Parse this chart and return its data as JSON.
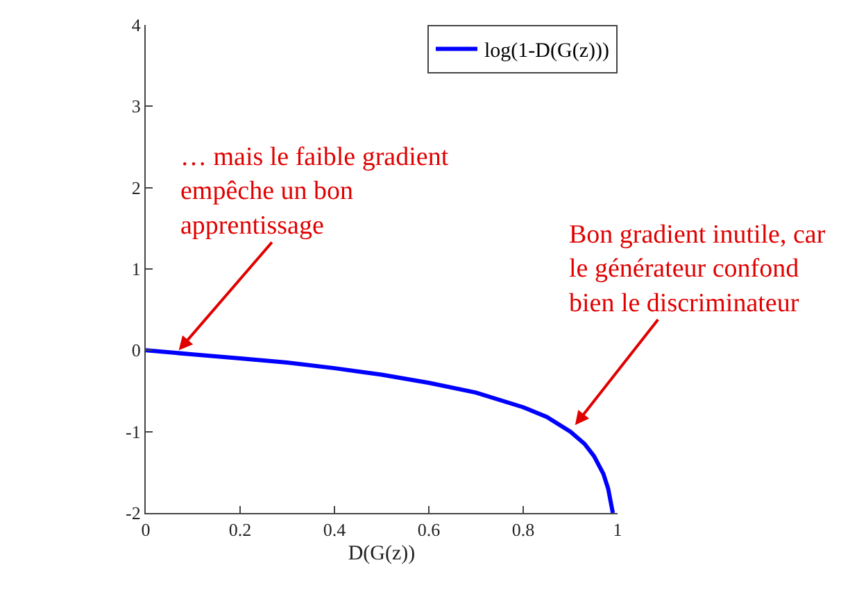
{
  "chart_data": {
    "type": "line",
    "xlabel": "D(G(z))",
    "xlim": [
      0,
      1
    ],
    "ylim": [
      -2,
      4
    ],
    "xticks": [
      0,
      0.2,
      0.4,
      0.6,
      0.8,
      1
    ],
    "yticks": [
      -2,
      -1,
      0,
      1,
      2,
      3,
      4
    ],
    "legend": "top right",
    "marker": "none",
    "line_style": "solid",
    "x": [
      0,
      0.1,
      0.2,
      0.3,
      0.4,
      0.5,
      0.6,
      0.7,
      0.8,
      0.85,
      0.9,
      0.93,
      0.95,
      0.97,
      0.98,
      0.99
    ],
    "series": [
      {
        "name": "log(1-D(G(z)))",
        "color": "#0000ff",
        "values": [
          0,
          -0.05,
          -0.1,
          -0.15,
          -0.22,
          -0.3,
          -0.4,
          -0.52,
          -0.7,
          -0.82,
          -1,
          -1.15,
          -1.3,
          -1.52,
          -1.7,
          -2
        ]
      }
    ],
    "annotations": [
      {
        "text": "… mais le faible gradient\nempêche un bon\napprentissage",
        "x": 0.07,
        "y": 0
      },
      {
        "text": "Bon gradient inutile, car\nle générateur confond\nbien le discriminateur",
        "x": 0.91,
        "y": -0.92
      }
    ]
  }
}
